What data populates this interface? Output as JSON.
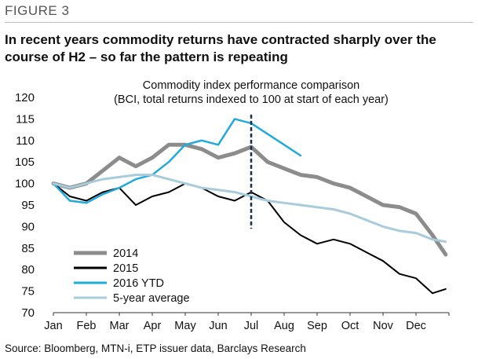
{
  "figure_label": "FIGURE 3",
  "headline": "In recent years commodity returns have contracted sharply over the course of H2 – so far the pattern is repeating",
  "source": "Source: Bloomberg, MTN-i, ETP issuer data, Barclays Research",
  "chart_data": {
    "type": "line",
    "title": "Commodity index performance comparison",
    "subtitle": "(BCI, total returns indexed to 100 at start of each year)",
    "xlabel": "",
    "ylabel": "",
    "x_ticks": [
      "Jan",
      "Feb",
      "Mar",
      "Apr",
      "May",
      "Jun",
      "Jul",
      "Aug",
      "Sep",
      "Oct",
      "Nov",
      "Dec"
    ],
    "xlim": [
      0,
      12
    ],
    "ylim": [
      70,
      120
    ],
    "y_ticks": [
      70,
      75,
      80,
      85,
      90,
      95,
      100,
      105,
      110,
      115,
      120
    ],
    "grid": false,
    "legend": "bottom-left",
    "vline": {
      "x": 6.0,
      "style": "dashed",
      "color": "#1a2a40"
    },
    "series": [
      {
        "name": "2014",
        "color": "#8c8c8c",
        "width": 5,
        "x": [
          0,
          0.5,
          1.0,
          1.5,
          2.0,
          2.5,
          3.0,
          3.5,
          4.0,
          4.5,
          5.0,
          5.5,
          6.0,
          6.5,
          7.0,
          7.5,
          8.0,
          8.5,
          9.0,
          9.5,
          10.0,
          10.5,
          11.0,
          11.5,
          11.9
        ],
        "values": [
          100,
          99,
          100,
          103,
          106,
          104,
          106,
          109,
          109,
          108,
          106,
          107,
          108.5,
          105,
          103.5,
          102,
          101.5,
          100,
          99,
          97,
          95,
          94.5,
          93,
          88,
          83.5
        ]
      },
      {
        "name": "2015",
        "color": "#000000",
        "width": 2,
        "x": [
          0,
          0.5,
          1.0,
          1.5,
          2.0,
          2.5,
          3.0,
          3.5,
          4.0,
          4.5,
          5.0,
          5.5,
          6.0,
          6.5,
          7.0,
          7.5,
          8.0,
          8.5,
          9.0,
          9.5,
          10.0,
          10.5,
          11.0,
          11.5,
          11.9
        ],
        "values": [
          100,
          97,
          96,
          98,
          99,
          95,
          97,
          98,
          100,
          99,
          97,
          96,
          98,
          96,
          91,
          88,
          86,
          87,
          86,
          84,
          82,
          79,
          78,
          74.5,
          75.5
        ]
      },
      {
        "name": "2016 YTD",
        "color": "#22aadd",
        "width": 2.5,
        "x": [
          0,
          0.5,
          1.0,
          1.5,
          2.0,
          2.5,
          3.0,
          3.5,
          4.0,
          4.5,
          5.0,
          5.5,
          6.0,
          6.5,
          7.0,
          7.5
        ],
        "values": [
          100,
          96,
          95.5,
          97.5,
          99,
          101,
          102,
          105,
          109,
          110,
          109,
          115,
          114,
          111.5,
          109,
          106.5
        ]
      },
      {
        "name": "5-year average",
        "color": "#a8ccdc",
        "width": 3,
        "x": [
          0,
          0.5,
          1.0,
          1.5,
          2.0,
          2.5,
          3.0,
          3.5,
          4.0,
          4.5,
          5.0,
          5.5,
          6.0,
          6.5,
          7.0,
          7.5,
          8.0,
          8.5,
          9.0,
          9.5,
          10.0,
          10.5,
          11.0,
          11.5,
          11.9
        ],
        "values": [
          100,
          99,
          100,
          101,
          101.5,
          102,
          102,
          101,
          100,
          99,
          98.5,
          98,
          97,
          96,
          95.5,
          95,
          94.5,
          94,
          93,
          91.5,
          90,
          89,
          88.5,
          87,
          86.5
        ]
      }
    ]
  }
}
